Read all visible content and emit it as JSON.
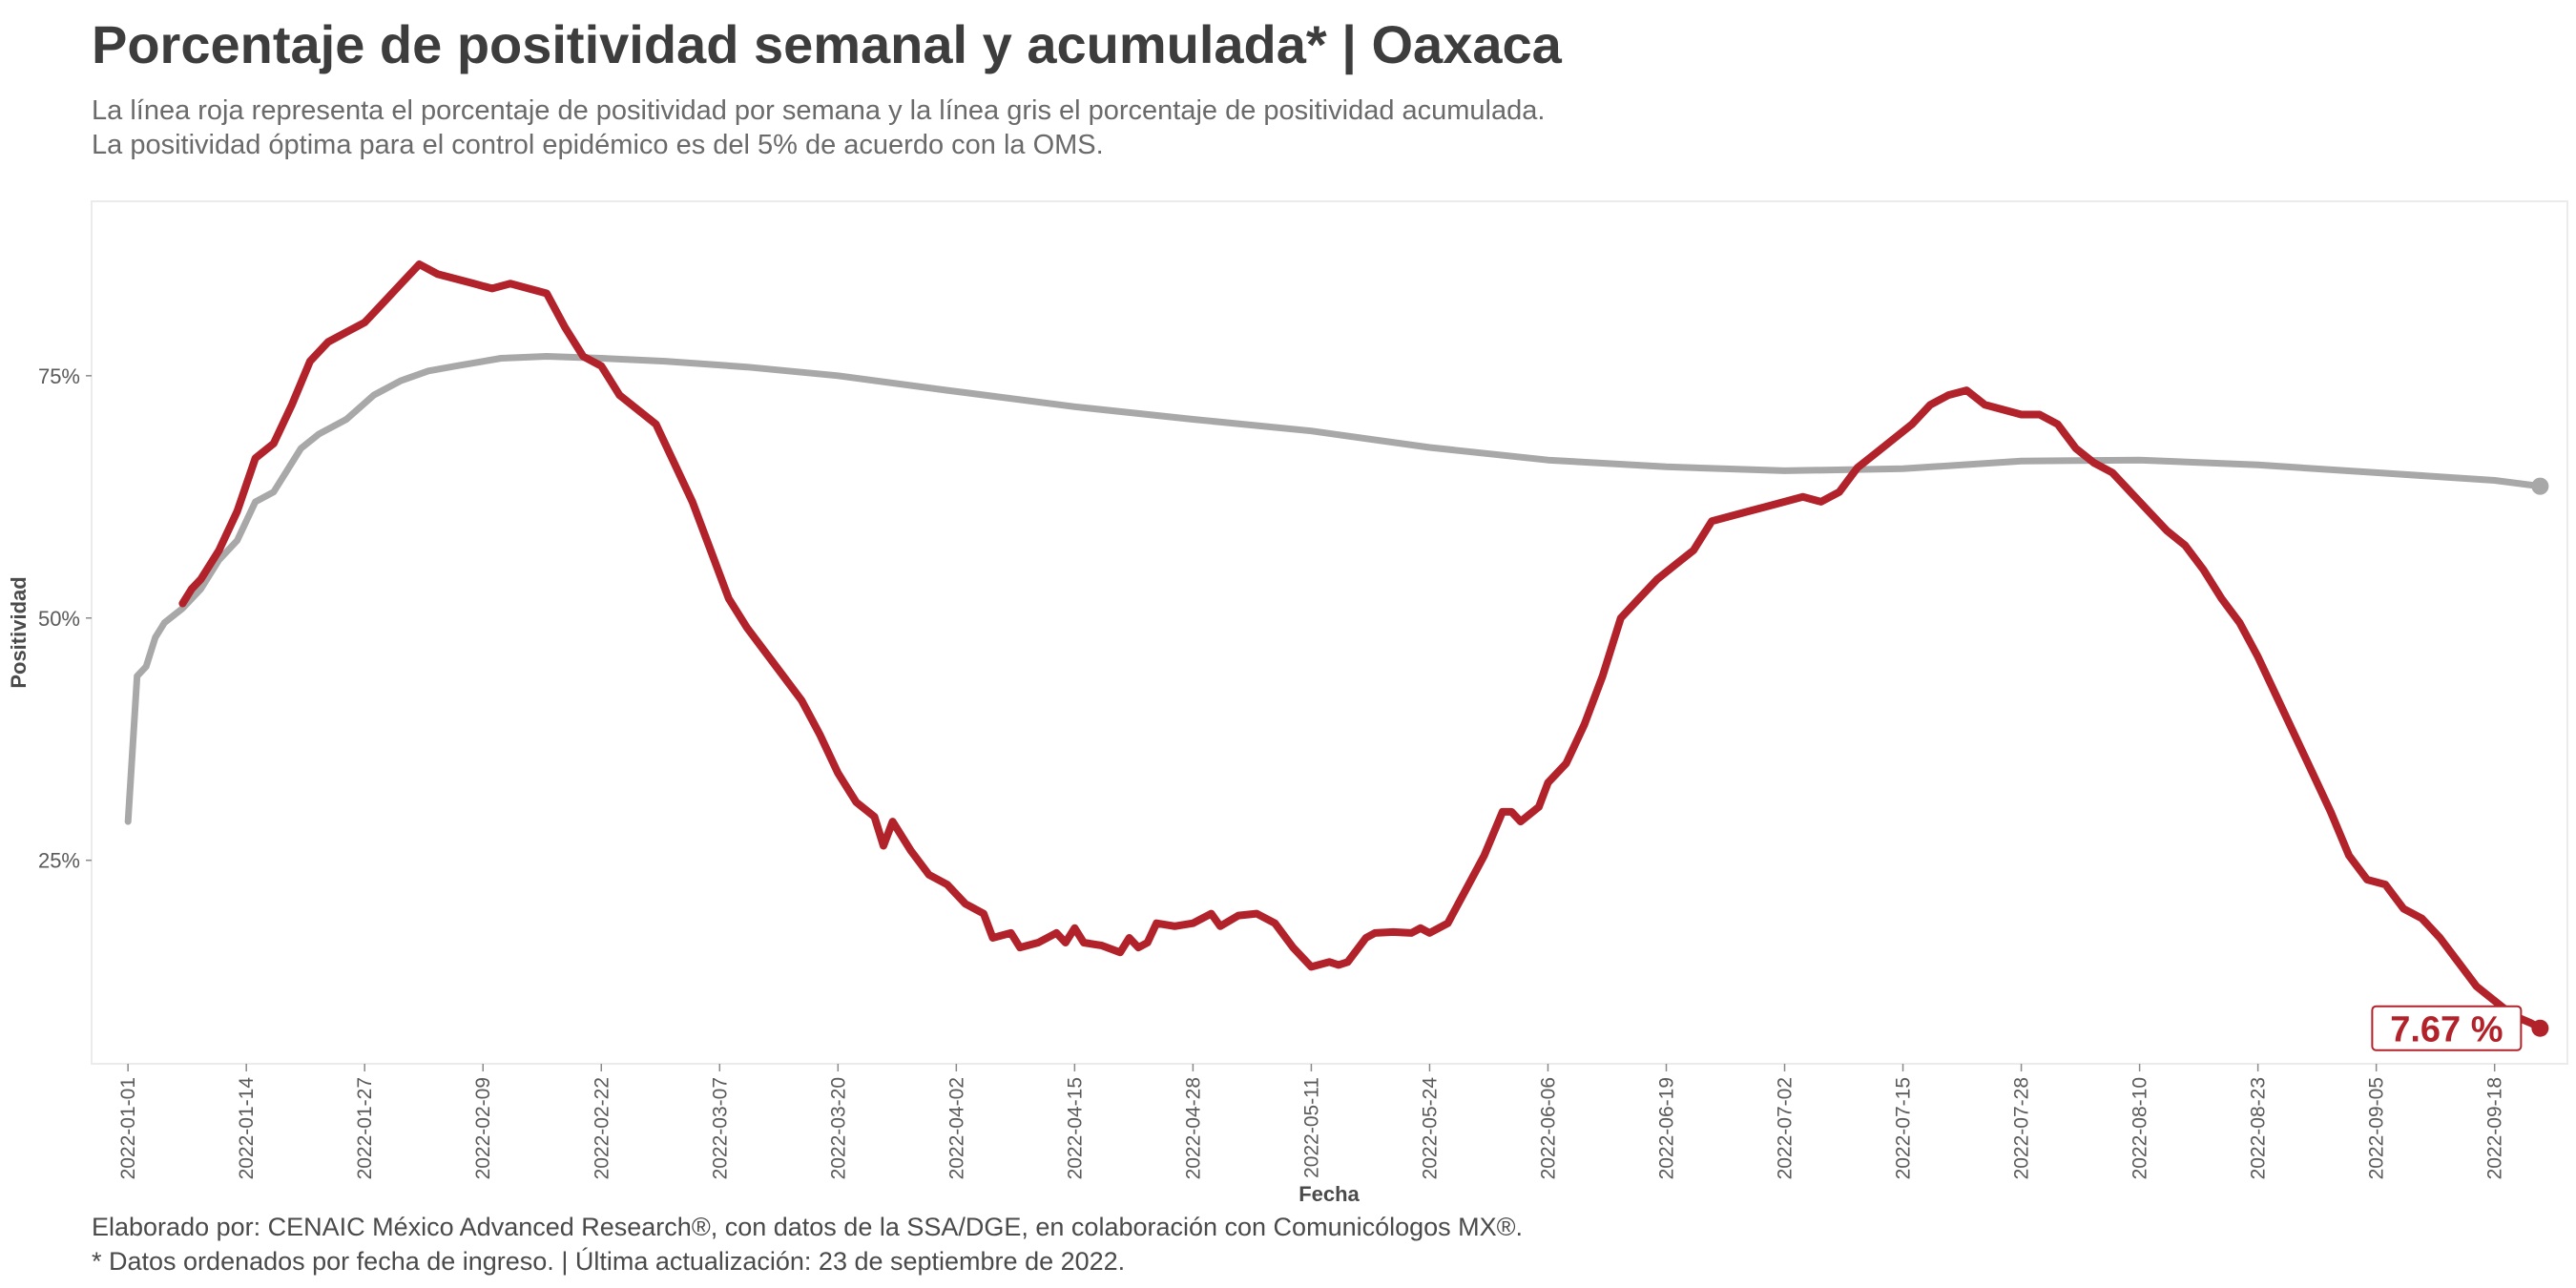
{
  "title": "Porcentaje de positividad semanal y acumulada* | Oaxaca",
  "subtitle_lines": [
    "La línea roja representa el porcentaje de positividad por semana y la línea gris el porcentaje de positividad acumulada.",
    "La positividad óptima para el control epidémico es del 5% de acuerdo con la OMS."
  ],
  "caption_lines": [
    "Elaborado por: CENAIC México Advanced Research®, con datos de la SSA/DGE, en colaboración con Comunicólogos MX®.",
    "* Datos ordenados por fecha de ingreso. | Última actualización: 23 de septiembre de 2022."
  ],
  "colors": {
    "weekly": "#b2222a",
    "cumulative": "#a8a8a8",
    "panel_border": "#ebebeb",
    "text": "#3d3d3d"
  },
  "chart_data": {
    "type": "line",
    "xlabel": "Fecha",
    "ylabel": "Positividad",
    "x_range": [
      "2021-12-28",
      "2022-09-26"
    ],
    "ylim": [
      4,
      93
    ],
    "y_ticks": [
      25,
      50,
      75
    ],
    "y_tick_labels": [
      "25%",
      "50%",
      "75%"
    ],
    "x_ticks": [
      "2022-01-01",
      "2022-01-14",
      "2022-01-27",
      "2022-02-09",
      "2022-02-22",
      "2022-03-07",
      "2022-03-20",
      "2022-04-02",
      "2022-04-15",
      "2022-04-28",
      "2022-05-11",
      "2022-05-24",
      "2022-06-06",
      "2022-06-19",
      "2022-07-02",
      "2022-07-15",
      "2022-07-28",
      "2022-08-10",
      "2022-08-23",
      "2022-09-05",
      "2022-09-18"
    ],
    "grid": false,
    "end_label": "7.67 %",
    "series": [
      {
        "key": "cumulative",
        "points": [
          [
            "2022-01-01",
            29
          ],
          [
            "2022-01-02",
            44
          ],
          [
            "2022-01-03",
            45
          ],
          [
            "2022-01-04",
            48
          ],
          [
            "2022-01-05",
            49.5
          ],
          [
            "2022-01-07",
            51
          ],
          [
            "2022-01-09",
            53
          ],
          [
            "2022-01-11",
            56
          ],
          [
            "2022-01-13",
            58
          ],
          [
            "2022-01-15",
            62
          ],
          [
            "2022-01-17",
            63
          ],
          [
            "2022-01-20",
            67.5
          ],
          [
            "2022-01-22",
            69
          ],
          [
            "2022-01-25",
            70.5
          ],
          [
            "2022-01-28",
            73
          ],
          [
            "2022-01-31",
            74.5
          ],
          [
            "2022-02-03",
            75.5
          ],
          [
            "2022-02-06",
            76
          ],
          [
            "2022-02-11",
            76.8
          ],
          [
            "2022-02-16",
            77
          ],
          [
            "2022-02-22",
            76.8
          ],
          [
            "2022-03-01",
            76.5
          ],
          [
            "2022-03-10",
            75.9
          ],
          [
            "2022-03-20",
            75
          ],
          [
            "2022-04-01",
            73.5
          ],
          [
            "2022-04-15",
            71.8
          ],
          [
            "2022-04-28",
            70.5
          ],
          [
            "2022-05-11",
            69.3
          ],
          [
            "2022-05-24",
            67.6
          ],
          [
            "2022-06-06",
            66.3
          ],
          [
            "2022-06-19",
            65.6
          ],
          [
            "2022-07-02",
            65.2
          ],
          [
            "2022-07-15",
            65.4
          ],
          [
            "2022-07-28",
            66.2
          ],
          [
            "2022-08-10",
            66.3
          ],
          [
            "2022-08-23",
            65.8
          ],
          [
            "2022-09-05",
            65
          ],
          [
            "2022-09-18",
            64.2
          ],
          [
            "2022-09-23",
            63.6
          ]
        ]
      },
      {
        "key": "weekly",
        "points": [
          [
            "2022-01-07",
            51.5
          ],
          [
            "2022-01-08",
            53
          ],
          [
            "2022-01-09",
            54
          ],
          [
            "2022-01-11",
            57
          ],
          [
            "2022-01-13",
            61
          ],
          [
            "2022-01-15",
            66.5
          ],
          [
            "2022-01-17",
            68
          ],
          [
            "2022-01-19",
            72
          ],
          [
            "2022-01-21",
            76.5
          ],
          [
            "2022-01-23",
            78.5
          ],
          [
            "2022-01-25",
            79.5
          ],
          [
            "2022-01-27",
            80.5
          ],
          [
            "2022-01-29",
            82.5
          ],
          [
            "2022-01-31",
            84.5
          ],
          [
            "2022-02-02",
            86.5
          ],
          [
            "2022-02-04",
            85.5
          ],
          [
            "2022-02-06",
            85
          ],
          [
            "2022-02-08",
            84.5
          ],
          [
            "2022-02-10",
            84
          ],
          [
            "2022-02-12",
            84.5
          ],
          [
            "2022-02-14",
            84
          ],
          [
            "2022-02-16",
            83.5
          ],
          [
            "2022-02-18",
            80
          ],
          [
            "2022-02-20",
            77
          ],
          [
            "2022-02-22",
            76
          ],
          [
            "2022-02-24",
            73
          ],
          [
            "2022-02-26",
            71.5
          ],
          [
            "2022-02-28",
            70
          ],
          [
            "2022-03-02",
            66
          ],
          [
            "2022-03-04",
            62
          ],
          [
            "2022-03-06",
            57
          ],
          [
            "2022-03-08",
            52
          ],
          [
            "2022-03-10",
            49
          ],
          [
            "2022-03-12",
            46.5
          ],
          [
            "2022-03-14",
            44
          ],
          [
            "2022-03-16",
            41.5
          ],
          [
            "2022-03-18",
            38
          ],
          [
            "2022-03-20",
            34
          ],
          [
            "2022-03-22",
            31
          ],
          [
            "2022-03-24",
            29.5
          ],
          [
            "2022-03-25",
            26.5
          ],
          [
            "2022-03-26",
            29
          ],
          [
            "2022-03-28",
            26
          ],
          [
            "2022-03-30",
            23.5
          ],
          [
            "2022-04-01",
            22.5
          ],
          [
            "2022-04-03",
            20.5
          ],
          [
            "2022-04-05",
            19.5
          ],
          [
            "2022-04-06",
            17
          ],
          [
            "2022-04-08",
            17.5
          ],
          [
            "2022-04-09",
            16
          ],
          [
            "2022-04-11",
            16.5
          ],
          [
            "2022-04-13",
            17.5
          ],
          [
            "2022-04-14",
            16.5
          ],
          [
            "2022-04-15",
            18
          ],
          [
            "2022-04-16",
            16.5
          ],
          [
            "2022-04-18",
            16.2
          ],
          [
            "2022-04-20",
            15.5
          ],
          [
            "2022-04-21",
            17
          ],
          [
            "2022-04-22",
            16
          ],
          [
            "2022-04-23",
            16.5
          ],
          [
            "2022-04-24",
            18.5
          ],
          [
            "2022-04-26",
            18.2
          ],
          [
            "2022-04-28",
            18.5
          ],
          [
            "2022-04-30",
            19.5
          ],
          [
            "2022-05-01",
            18.2
          ],
          [
            "2022-05-03",
            19.3
          ],
          [
            "2022-05-05",
            19.5
          ],
          [
            "2022-05-07",
            18.5
          ],
          [
            "2022-05-09",
            16
          ],
          [
            "2022-05-11",
            14
          ],
          [
            "2022-05-13",
            14.5
          ],
          [
            "2022-05-14",
            14.2
          ],
          [
            "2022-05-15",
            14.5
          ],
          [
            "2022-05-17",
            17
          ],
          [
            "2022-05-18",
            17.5
          ],
          [
            "2022-05-20",
            17.6
          ],
          [
            "2022-05-22",
            17.5
          ],
          [
            "2022-05-23",
            18
          ],
          [
            "2022-05-24",
            17.5
          ],
          [
            "2022-05-26",
            18.5
          ],
          [
            "2022-05-28",
            22
          ],
          [
            "2022-05-30",
            25.5
          ],
          [
            "2022-06-01",
            30
          ],
          [
            "2022-06-02",
            30
          ],
          [
            "2022-06-03",
            29
          ],
          [
            "2022-06-05",
            30.5
          ],
          [
            "2022-06-06",
            33
          ],
          [
            "2022-06-08",
            35
          ],
          [
            "2022-06-10",
            39
          ],
          [
            "2022-06-12",
            44
          ],
          [
            "2022-06-14",
            50
          ],
          [
            "2022-06-16",
            52
          ],
          [
            "2022-06-18",
            54
          ],
          [
            "2022-06-20",
            55.5
          ],
          [
            "2022-06-22",
            57
          ],
          [
            "2022-06-24",
            60
          ],
          [
            "2022-06-26",
            60.5
          ],
          [
            "2022-06-28",
            61
          ],
          [
            "2022-06-30",
            61.5
          ],
          [
            "2022-07-02",
            62
          ],
          [
            "2022-07-04",
            62.5
          ],
          [
            "2022-07-06",
            62
          ],
          [
            "2022-07-08",
            63
          ],
          [
            "2022-07-10",
            65.5
          ],
          [
            "2022-07-12",
            67
          ],
          [
            "2022-07-14",
            68.5
          ],
          [
            "2022-07-16",
            70
          ],
          [
            "2022-07-18",
            72
          ],
          [
            "2022-07-20",
            73
          ],
          [
            "2022-07-22",
            73.5
          ],
          [
            "2022-07-24",
            72
          ],
          [
            "2022-07-26",
            71.5
          ],
          [
            "2022-07-28",
            71
          ],
          [
            "2022-07-30",
            71
          ],
          [
            "2022-08-01",
            70
          ],
          [
            "2022-08-03",
            67.5
          ],
          [
            "2022-08-05",
            66
          ],
          [
            "2022-08-07",
            65
          ],
          [
            "2022-08-09",
            63
          ],
          [
            "2022-08-11",
            61
          ],
          [
            "2022-08-13",
            59
          ],
          [
            "2022-08-15",
            57.5
          ],
          [
            "2022-08-17",
            55
          ],
          [
            "2022-08-19",
            52
          ],
          [
            "2022-08-21",
            49.5
          ],
          [
            "2022-08-23",
            46
          ],
          [
            "2022-08-25",
            42
          ],
          [
            "2022-08-27",
            38
          ],
          [
            "2022-08-29",
            34
          ],
          [
            "2022-08-31",
            30
          ],
          [
            "2022-09-02",
            25.5
          ],
          [
            "2022-09-04",
            23
          ],
          [
            "2022-09-06",
            22.5
          ],
          [
            "2022-09-08",
            20
          ],
          [
            "2022-09-10",
            19
          ],
          [
            "2022-09-12",
            17
          ],
          [
            "2022-09-14",
            14.5
          ],
          [
            "2022-09-16",
            12
          ],
          [
            "2022-09-18",
            10.5
          ],
          [
            "2022-09-20",
            9
          ],
          [
            "2022-09-22",
            8.2
          ],
          [
            "2022-09-23",
            7.67
          ]
        ]
      }
    ]
  }
}
